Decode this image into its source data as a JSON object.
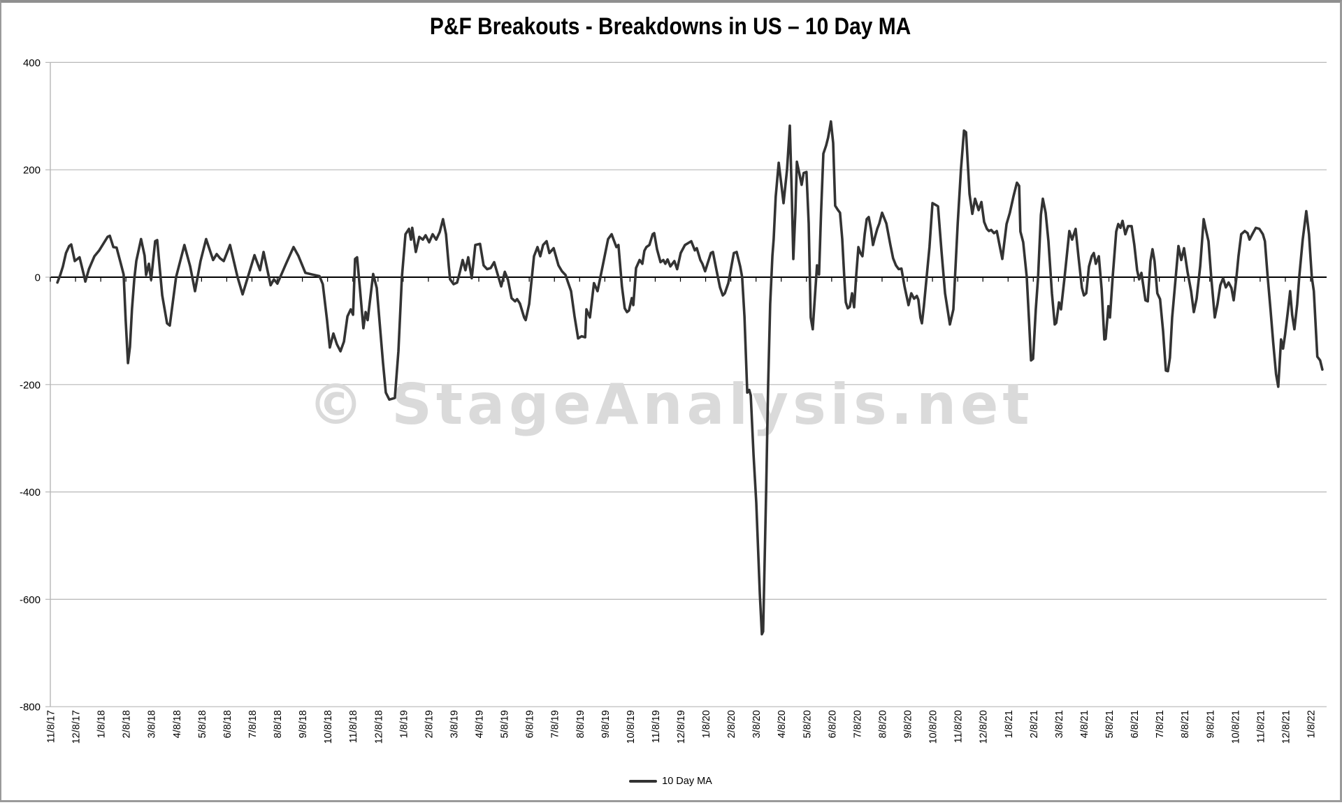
{
  "window": {
    "title": "P&F Breakouts - Breakdowns in US – 10 Day MA"
  },
  "watermark": {
    "text": "© StageAnalysis.net"
  },
  "legend": {
    "label": "10 Day MA"
  },
  "colors": {
    "line": "#333333",
    "grid": "#b7b7b7",
    "zero_axis": "#000000",
    "text": "#000000",
    "watermark": "#dadada",
    "frame": "#8f8f8f"
  },
  "chart_data": {
    "type": "line",
    "title": "P&F Breakouts - Breakdowns in US – 10 Day MA",
    "series_name": "10 Day MA",
    "xlabel": "",
    "ylabel": "",
    "ylim": [
      -800,
      400
    ],
    "grid": "horizontal",
    "legend_position": "bottom-center",
    "y_ticks": [
      400,
      200,
      0,
      -200,
      -400,
      -600,
      -800
    ],
    "x_unit": "months since 11/8/2017; points given as [month_offset, value]",
    "x_labels": [
      "11/8/17",
      "12/8/17",
      "1/8/18",
      "2/8/18",
      "3/8/18",
      "4/8/18",
      "5/8/18",
      "6/8/18",
      "7/8/18",
      "8/8/18",
      "9/8/18",
      "10/8/18",
      "11/8/18",
      "12/8/18",
      "1/8/19",
      "2/8/19",
      "3/8/19",
      "4/8/19",
      "5/8/19",
      "6/8/19",
      "7/8/19",
      "8/8/19",
      "9/8/19",
      "10/8/19",
      "11/8/19",
      "12/8/19",
      "1/8/20",
      "2/8/20",
      "3/8/20",
      "4/8/20",
      "5/8/20",
      "6/8/20",
      "7/8/20",
      "8/8/20",
      "9/8/20",
      "10/8/20",
      "11/8/20",
      "12/8/20",
      "1/8/21",
      "2/8/21",
      "3/8/21",
      "4/8/21",
      "5/8/21",
      "6/8/21",
      "7/8/21",
      "8/8/21",
      "9/8/21",
      "10/8/21",
      "11/8/21",
      "12/8/21",
      "1/8/22"
    ],
    "points": [
      [
        0.28,
        -10
      ],
      [
        0.4,
        5
      ],
      [
        0.5,
        20
      ],
      [
        0.62,
        45
      ],
      [
        0.75,
        58
      ],
      [
        0.83,
        61
      ],
      [
        0.97,
        30
      ],
      [
        1.16,
        37
      ],
      [
        1.33,
        4
      ],
      [
        1.39,
        -8
      ],
      [
        1.53,
        15
      ],
      [
        1.75,
        39
      ],
      [
        1.94,
        50
      ],
      [
        2.27,
        75
      ],
      [
        2.36,
        77
      ],
      [
        2.5,
        56
      ],
      [
        2.63,
        55
      ],
      [
        2.77,
        30
      ],
      [
        2.91,
        5
      ],
      [
        2.99,
        -80
      ],
      [
        3.08,
        -160
      ],
      [
        3.16,
        -130
      ],
      [
        3.24,
        -60
      ],
      [
        3.33,
        -4
      ],
      [
        3.41,
        30
      ],
      [
        3.6,
        71
      ],
      [
        3.74,
        40
      ],
      [
        3.8,
        4
      ],
      [
        3.91,
        25
      ],
      [
        4.0,
        -5
      ],
      [
        4.16,
        67
      ],
      [
        4.24,
        69
      ],
      [
        4.44,
        -34
      ],
      [
        4.63,
        -86
      ],
      [
        4.74,
        -90
      ],
      [
        4.99,
        0
      ],
      [
        5.32,
        60
      ],
      [
        5.55,
        20
      ],
      [
        5.74,
        -26
      ],
      [
        5.96,
        30
      ],
      [
        6.18,
        71
      ],
      [
        6.46,
        32
      ],
      [
        6.6,
        43
      ],
      [
        6.74,
        35
      ],
      [
        6.88,
        30
      ],
      [
        7.13,
        60
      ],
      [
        7.43,
        0
      ],
      [
        7.63,
        -32
      ],
      [
        7.9,
        10
      ],
      [
        8.1,
        41
      ],
      [
        8.32,
        13
      ],
      [
        8.46,
        47
      ],
      [
        8.74,
        -15
      ],
      [
        8.87,
        -4
      ],
      [
        9.01,
        -12
      ],
      [
        9.35,
        25
      ],
      [
        9.65,
        56
      ],
      [
        9.84,
        40
      ],
      [
        10.12,
        8
      ],
      [
        10.4,
        5
      ],
      [
        10.68,
        2
      ],
      [
        10.81,
        -13
      ],
      [
        10.98,
        -80
      ],
      [
        11.09,
        -131
      ],
      [
        11.23,
        -105
      ],
      [
        11.37,
        -125
      ],
      [
        11.51,
        -138
      ],
      [
        11.65,
        -120
      ],
      [
        11.79,
        -73
      ],
      [
        11.92,
        -60
      ],
      [
        12.01,
        -70
      ],
      [
        12.09,
        34
      ],
      [
        12.17,
        37
      ],
      [
        12.28,
        -19
      ],
      [
        12.42,
        -95
      ],
      [
        12.51,
        -65
      ],
      [
        12.59,
        -80
      ],
      [
        12.81,
        6
      ],
      [
        12.95,
        -20
      ],
      [
        13.03,
        -65
      ],
      [
        13.2,
        -160
      ],
      [
        13.31,
        -215
      ],
      [
        13.45,
        -228
      ],
      [
        13.67,
        -225
      ],
      [
        13.81,
        -138
      ],
      [
        13.95,
        0
      ],
      [
        14.09,
        80
      ],
      [
        14.23,
        90
      ],
      [
        14.31,
        70
      ],
      [
        14.36,
        92
      ],
      [
        14.5,
        47
      ],
      [
        14.64,
        75
      ],
      [
        14.78,
        70
      ],
      [
        14.89,
        78
      ],
      [
        15.03,
        65
      ],
      [
        15.17,
        80
      ],
      [
        15.31,
        70
      ],
      [
        15.45,
        84
      ],
      [
        15.58,
        108
      ],
      [
        15.7,
        80
      ],
      [
        15.81,
        20
      ],
      [
        15.86,
        -4
      ],
      [
        16.0,
        -13
      ],
      [
        16.14,
        -10
      ],
      [
        16.25,
        10
      ],
      [
        16.36,
        32
      ],
      [
        16.47,
        13
      ],
      [
        16.58,
        37
      ],
      [
        16.72,
        -2
      ],
      [
        16.86,
        60
      ],
      [
        17.05,
        62
      ],
      [
        17.19,
        22
      ],
      [
        17.33,
        15
      ],
      [
        17.47,
        17
      ],
      [
        17.61,
        28
      ],
      [
        17.75,
        5
      ],
      [
        17.89,
        -17
      ],
      [
        18.03,
        10
      ],
      [
        18.16,
        -5
      ],
      [
        18.3,
        -39
      ],
      [
        18.44,
        -45
      ],
      [
        18.52,
        -41
      ],
      [
        18.63,
        -49
      ],
      [
        18.8,
        -75
      ],
      [
        18.86,
        -80
      ],
      [
        19.0,
        -50
      ],
      [
        19.19,
        39
      ],
      [
        19.33,
        56
      ],
      [
        19.44,
        39
      ],
      [
        19.55,
        60
      ],
      [
        19.69,
        67
      ],
      [
        19.8,
        45
      ],
      [
        19.97,
        54
      ],
      [
        20.16,
        22
      ],
      [
        20.3,
        11
      ],
      [
        20.44,
        4
      ],
      [
        20.66,
        -26
      ],
      [
        20.8,
        -73
      ],
      [
        20.94,
        -114
      ],
      [
        21.08,
        -110
      ],
      [
        21.22,
        -112
      ],
      [
        21.27,
        -60
      ],
      [
        21.41,
        -75
      ],
      [
        21.57,
        -11
      ],
      [
        21.71,
        -26
      ],
      [
        21.91,
        20
      ],
      [
        22.13,
        71
      ],
      [
        22.27,
        80
      ],
      [
        22.35,
        70
      ],
      [
        22.46,
        56
      ],
      [
        22.54,
        60
      ],
      [
        22.68,
        -17
      ],
      [
        22.79,
        -58
      ],
      [
        22.88,
        -65
      ],
      [
        22.96,
        -62
      ],
      [
        23.07,
        -39
      ],
      [
        23.13,
        -52
      ],
      [
        23.24,
        17
      ],
      [
        23.38,
        32
      ],
      [
        23.49,
        25
      ],
      [
        23.57,
        49
      ],
      [
        23.65,
        56
      ],
      [
        23.77,
        60
      ],
      [
        23.9,
        80
      ],
      [
        23.96,
        82
      ],
      [
        24.07,
        52
      ],
      [
        24.21,
        28
      ],
      [
        24.32,
        32
      ],
      [
        24.4,
        25
      ],
      [
        24.49,
        33
      ],
      [
        24.6,
        20
      ],
      [
        24.76,
        30
      ],
      [
        24.87,
        15
      ],
      [
        25.01,
        45
      ],
      [
        25.18,
        60
      ],
      [
        25.43,
        67
      ],
      [
        25.57,
        50
      ],
      [
        25.65,
        54
      ],
      [
        25.79,
        32
      ],
      [
        25.87,
        25
      ],
      [
        25.98,
        11
      ],
      [
        26.21,
        45
      ],
      [
        26.29,
        47
      ],
      [
        26.43,
        13
      ],
      [
        26.57,
        -19
      ],
      [
        26.68,
        -34
      ],
      [
        26.76,
        -30
      ],
      [
        26.9,
        -11
      ],
      [
        27.12,
        45
      ],
      [
        27.23,
        47
      ],
      [
        27.37,
        20
      ],
      [
        27.45,
        0
      ],
      [
        27.54,
        -73
      ],
      [
        27.65,
        -215
      ],
      [
        27.73,
        -210
      ],
      [
        27.79,
        -220
      ],
      [
        27.9,
        -331
      ],
      [
        28.01,
        -420
      ],
      [
        28.06,
        -480
      ],
      [
        28.15,
        -590
      ],
      [
        28.23,
        -665
      ],
      [
        28.28,
        -660
      ],
      [
        28.4,
        -400
      ],
      [
        28.48,
        -200
      ],
      [
        28.56,
        -50
      ],
      [
        28.65,
        40
      ],
      [
        28.7,
        71
      ],
      [
        28.78,
        150
      ],
      [
        28.9,
        213
      ],
      [
        29.01,
        170
      ],
      [
        29.09,
        138
      ],
      [
        29.23,
        200
      ],
      [
        29.34,
        282
      ],
      [
        29.42,
        150
      ],
      [
        29.48,
        34
      ],
      [
        29.56,
        120
      ],
      [
        29.62,
        215
      ],
      [
        29.73,
        190
      ],
      [
        29.81,
        172
      ],
      [
        29.89,
        194
      ],
      [
        30.0,
        196
      ],
      [
        30.09,
        100
      ],
      [
        30.17,
        -75
      ],
      [
        30.25,
        -97
      ],
      [
        30.33,
        -40
      ],
      [
        30.42,
        22
      ],
      [
        30.5,
        5
      ],
      [
        30.58,
        120
      ],
      [
        30.67,
        230
      ],
      [
        30.78,
        245
      ],
      [
        30.86,
        260
      ],
      [
        30.97,
        290
      ],
      [
        31.06,
        250
      ],
      [
        31.14,
        133
      ],
      [
        31.25,
        125
      ],
      [
        31.33,
        120
      ],
      [
        31.42,
        71
      ],
      [
        31.5,
        0
      ],
      [
        31.56,
        -47
      ],
      [
        31.64,
        -58
      ],
      [
        31.72,
        -55
      ],
      [
        31.81,
        -30
      ],
      [
        31.89,
        -56
      ],
      [
        31.97,
        0
      ],
      [
        32.06,
        56
      ],
      [
        32.14,
        45
      ],
      [
        32.22,
        39
      ],
      [
        32.31,
        80
      ],
      [
        32.39,
        108
      ],
      [
        32.47,
        112
      ],
      [
        32.56,
        90
      ],
      [
        32.64,
        60
      ],
      [
        32.72,
        75
      ],
      [
        32.81,
        90
      ],
      [
        32.89,
        100
      ],
      [
        33.0,
        120
      ],
      [
        33.17,
        100
      ],
      [
        33.33,
        60
      ],
      [
        33.44,
        35
      ],
      [
        33.55,
        22
      ],
      [
        33.66,
        15
      ],
      [
        33.77,
        16
      ],
      [
        33.89,
        -17
      ],
      [
        34.05,
        -52
      ],
      [
        34.16,
        -30
      ],
      [
        34.27,
        -40
      ],
      [
        34.38,
        -35
      ],
      [
        34.44,
        -42
      ],
      [
        34.52,
        -75
      ],
      [
        34.58,
        -86
      ],
      [
        34.66,
        -54
      ],
      [
        34.88,
        56
      ],
      [
        35.0,
        138
      ],
      [
        35.11,
        135
      ],
      [
        35.22,
        132
      ],
      [
        35.36,
        47
      ],
      [
        35.5,
        -30
      ],
      [
        35.69,
        -88
      ],
      [
        35.83,
        -60
      ],
      [
        36.0,
        100
      ],
      [
        36.13,
        200
      ],
      [
        36.25,
        273
      ],
      [
        36.33,
        270
      ],
      [
        36.47,
        155
      ],
      [
        36.58,
        118
      ],
      [
        36.69,
        146
      ],
      [
        36.83,
        125
      ],
      [
        36.94,
        140
      ],
      [
        37.05,
        103
      ],
      [
        37.16,
        90
      ],
      [
        37.24,
        86
      ],
      [
        37.33,
        88
      ],
      [
        37.44,
        82
      ],
      [
        37.55,
        86
      ],
      [
        37.66,
        60
      ],
      [
        37.77,
        34
      ],
      [
        37.94,
        99
      ],
      [
        38.07,
        120
      ],
      [
        38.21,
        150
      ],
      [
        38.35,
        176
      ],
      [
        38.44,
        170
      ],
      [
        38.49,
        85
      ],
      [
        38.6,
        65
      ],
      [
        38.74,
        0
      ],
      [
        38.83,
        -80
      ],
      [
        38.91,
        -155
      ],
      [
        38.99,
        -152
      ],
      [
        39.1,
        -60
      ],
      [
        39.19,
        0
      ],
      [
        39.3,
        116
      ],
      [
        39.38,
        146
      ],
      [
        39.49,
        120
      ],
      [
        39.6,
        67
      ],
      [
        39.74,
        -30
      ],
      [
        39.85,
        -88
      ],
      [
        39.91,
        -85
      ],
      [
        40.02,
        -47
      ],
      [
        40.1,
        -60
      ],
      [
        40.24,
        0
      ],
      [
        40.43,
        86
      ],
      [
        40.54,
        70
      ],
      [
        40.68,
        90
      ],
      [
        40.79,
        39
      ],
      [
        40.93,
        -20
      ],
      [
        41.01,
        -34
      ],
      [
        41.1,
        -30
      ],
      [
        41.21,
        20
      ],
      [
        41.32,
        39
      ],
      [
        41.4,
        45
      ],
      [
        41.48,
        25
      ],
      [
        41.6,
        39
      ],
      [
        41.71,
        -22
      ],
      [
        41.82,
        -116
      ],
      [
        41.87,
        -115
      ],
      [
        41.98,
        -54
      ],
      [
        42.04,
        -75
      ],
      [
        42.15,
        0
      ],
      [
        42.29,
        85
      ],
      [
        42.37,
        99
      ],
      [
        42.46,
        92
      ],
      [
        42.54,
        105
      ],
      [
        42.65,
        80
      ],
      [
        42.76,
        95
      ],
      [
        42.9,
        95
      ],
      [
        43.01,
        60
      ],
      [
        43.12,
        13
      ],
      [
        43.2,
        -4
      ],
      [
        43.29,
        8
      ],
      [
        43.45,
        -43
      ],
      [
        43.54,
        -45
      ],
      [
        43.65,
        30
      ],
      [
        43.73,
        52
      ],
      [
        43.81,
        30
      ],
      [
        43.92,
        -30
      ],
      [
        44.03,
        -41
      ],
      [
        44.15,
        -100
      ],
      [
        44.26,
        -174
      ],
      [
        44.34,
        -175
      ],
      [
        44.42,
        -150
      ],
      [
        44.51,
        -75
      ],
      [
        44.65,
        0
      ],
      [
        44.76,
        58
      ],
      [
        44.87,
        32
      ],
      [
        44.98,
        54
      ],
      [
        45.12,
        10
      ],
      [
        45.26,
        -26
      ],
      [
        45.37,
        -65
      ],
      [
        45.48,
        -40
      ],
      [
        45.62,
        20
      ],
      [
        45.76,
        108
      ],
      [
        45.84,
        90
      ],
      [
        45.95,
        67
      ],
      [
        46.06,
        0
      ],
      [
        46.2,
        -75
      ],
      [
        46.31,
        -50
      ],
      [
        46.42,
        -15
      ],
      [
        46.53,
        -2
      ],
      [
        46.64,
        -19
      ],
      [
        46.75,
        -10
      ],
      [
        46.86,
        -20
      ],
      [
        46.95,
        -43
      ],
      [
        47.06,
        0
      ],
      [
        47.14,
        39
      ],
      [
        47.25,
        80
      ],
      [
        47.39,
        86
      ],
      [
        47.5,
        82
      ],
      [
        47.58,
        70
      ],
      [
        47.69,
        80
      ],
      [
        47.83,
        92
      ],
      [
        47.97,
        90
      ],
      [
        48.11,
        80
      ],
      [
        48.19,
        67
      ],
      [
        48.3,
        0
      ],
      [
        48.41,
        -60
      ],
      [
        48.52,
        -122
      ],
      [
        48.63,
        -180
      ],
      [
        48.72,
        -204
      ],
      [
        48.83,
        -116
      ],
      [
        48.91,
        -133
      ],
      [
        48.99,
        -107
      ],
      [
        49.11,
        -60
      ],
      [
        49.19,
        -26
      ],
      [
        49.27,
        -70
      ],
      [
        49.36,
        -97
      ],
      [
        49.47,
        -50
      ],
      [
        49.55,
        0
      ],
      [
        49.69,
        70
      ],
      [
        49.83,
        123
      ],
      [
        49.94,
        80
      ],
      [
        50.05,
        0
      ],
      [
        50.13,
        -26
      ],
      [
        50.27,
        -148
      ],
      [
        50.38,
        -155
      ],
      [
        50.47,
        -172
      ]
    ]
  }
}
